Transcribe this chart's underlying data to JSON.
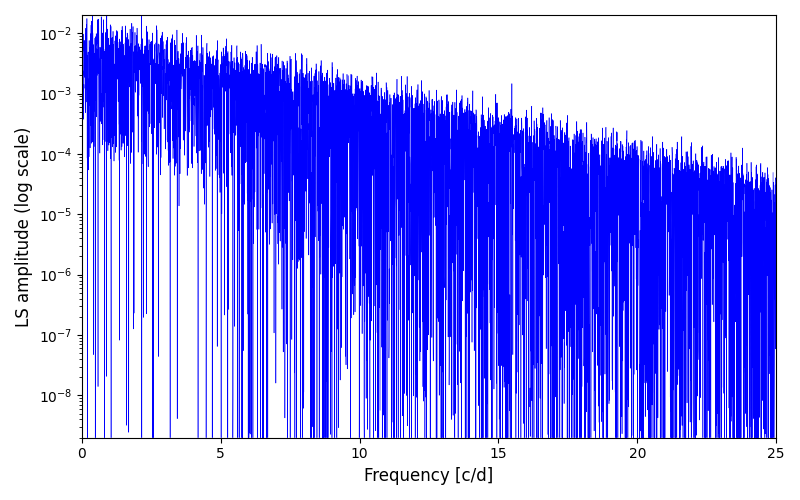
{
  "title": "",
  "xlabel": "Frequency [c/d]",
  "ylabel": "LS amplitude (log scale)",
  "xlim": [
    0,
    25
  ],
  "ylim_log_min": -8.7,
  "ylim_log_max": -1.7,
  "line_color": "#0000ff",
  "line_width": 0.4,
  "background_color": "#ffffff",
  "seed": 42,
  "freq_max": 25.0
}
